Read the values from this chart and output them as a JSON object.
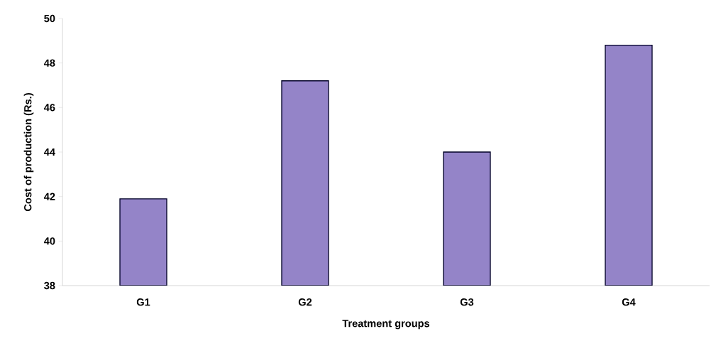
{
  "chart_data": {
    "type": "bar",
    "xlabel": "Treatment groups",
    "ylabel": "Cost of production (Rs.)",
    "categories": [
      "G1",
      "G2",
      "G3",
      "G4"
    ],
    "values": [
      41.9,
      47.2,
      44.0,
      48.8
    ],
    "color": "#9484c8",
    "ylim": [
      38,
      50
    ],
    "yticks": [
      38,
      40,
      42,
      44,
      46,
      48,
      50
    ],
    "grid": false
  }
}
